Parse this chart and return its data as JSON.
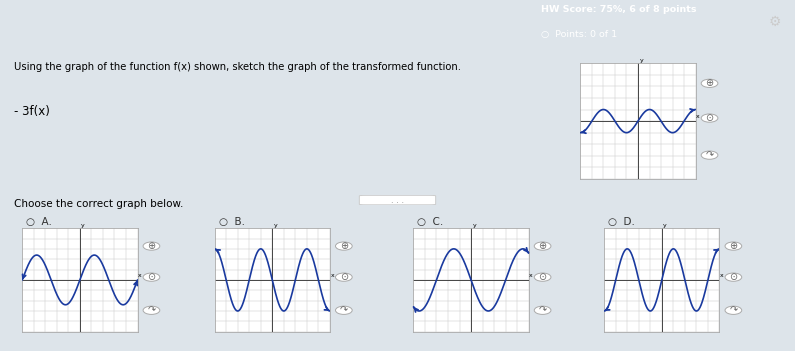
{
  "title_hw": "HW Score: 75%, 6 of 8 points",
  "title_pts": "Points: 0 of 1",
  "header_bg": "#2a7fa8",
  "header_text_color": "#ffffff",
  "body_bg": "#dde4ea",
  "upper_bg": "#eaeef2",
  "lower_bg": "#eaeef2",
  "divider_color": "#bbbbbb",
  "instruction": "Using the graph of the function f(x) shown, sketch the graph of the transformed function.",
  "transform": "- 3f(x)",
  "choose_text": "Choose the correct graph below.",
  "options": [
    "A.",
    "B.",
    "C.",
    "D."
  ],
  "curve_color": "#1a3a9f",
  "grid_color": "#c8c8c8",
  "axis_color": "#444444",
  "panel_bg": "#ffffff",
  "panel_border": "#aaaaaa",
  "radio_color": "#333333",
  "icon_color": "#888888",
  "sep_color": "#999999"
}
